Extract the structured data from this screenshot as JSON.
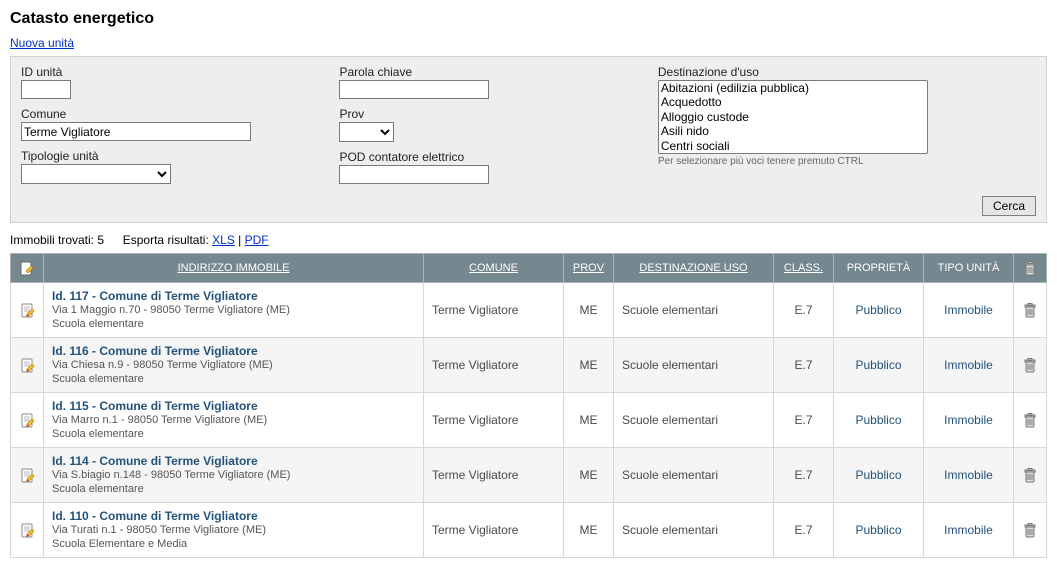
{
  "page": {
    "title": "Catasto energetico",
    "new_unit_link": "Nuova unità"
  },
  "filters": {
    "id_unita": {
      "label": "ID unità",
      "value": ""
    },
    "comune": {
      "label": "Comune",
      "value": "Terme Vigliatore"
    },
    "tipologie": {
      "label": "Tipologie unità",
      "value": ""
    },
    "parola": {
      "label": "Parola chiave",
      "value": ""
    },
    "prov": {
      "label": "Prov",
      "value": ""
    },
    "pod": {
      "label": "POD contatore elettrico",
      "value": ""
    },
    "dest_uso": {
      "label": "Destinazione d'uso",
      "options": [
        "Abitazioni (edilizia pubblica)",
        "Acquedotto",
        "Alloggio custode",
        "Asili nido",
        "Centri sociali"
      ],
      "hint": "Per selezionare più voci tenere premuto CTRL"
    },
    "search_button": "Cerca"
  },
  "results_bar": {
    "found_label": "Immobili trovati:",
    "found_count": "5",
    "export_label": "Esporta risultati:",
    "xls": "XLS",
    "pdf": "PDF",
    "sep": " | "
  },
  "table": {
    "headers": {
      "indirizzo": "INDIRIZZO IMMOBILE",
      "comune": "COMUNE",
      "prov": "PROV",
      "dest": "DESTINAZIONE USO",
      "class": "CLASS.",
      "prop": "PROPRIETÀ",
      "tipo": "TIPO UNITÀ"
    },
    "rows": [
      {
        "title": "Id. 117  -  Comune di Terme Vigliatore",
        "addr": "Via 1 Maggio n.70 - 98050  Terme Vigliatore (ME)",
        "desc": "Scuola elementare",
        "comune": "Terme Vigliatore",
        "prov": "ME",
        "dest": "Scuole elementari",
        "class": "E.7",
        "prop": "Pubblico",
        "tipo": "Immobile"
      },
      {
        "title": "Id. 116  -  Comune di Terme Vigliatore",
        "addr": "Via Chiesa n.9 - 98050  Terme Vigliatore (ME)",
        "desc": "Scuola elementare",
        "comune": "Terme Vigliatore",
        "prov": "ME",
        "dest": "Scuole elementari",
        "class": "E.7",
        "prop": "Pubblico",
        "tipo": "Immobile"
      },
      {
        "title": "Id. 115  -  Comune di Terme Vigliatore",
        "addr": "Via Marro n.1 - 98050  Terme Vigliatore (ME)",
        "desc": "Scuola elementare",
        "comune": "Terme Vigliatore",
        "prov": "ME",
        "dest": "Scuole elementari",
        "class": "E.7",
        "prop": "Pubblico",
        "tipo": "Immobile"
      },
      {
        "title": "Id. 114  -  Comune di Terme Vigliatore",
        "addr": "Via S.biagio n.148 - 98050  Terme Vigliatore (ME)",
        "desc": "Scuola elementare",
        "comune": "Terme Vigliatore",
        "prov": "ME",
        "dest": "Scuole elementari",
        "class": "E.7",
        "prop": "Pubblico",
        "tipo": "Immobile"
      },
      {
        "title": "Id. 110  -  Comune di Terme Vigliatore",
        "addr": "Via Turati n.1 - 98050  Terme Vigliatore (ME)",
        "desc": "Scuola Elementare e Media",
        "comune": "Terme Vigliatore",
        "prov": "ME",
        "dest": "Scuole elementari",
        "class": "E.7",
        "prop": "Pubblico",
        "tipo": "Immobile"
      }
    ]
  },
  "colors": {
    "header_bg": "#76888f",
    "link": "#23527c",
    "panel_bg": "#eeeeee"
  }
}
